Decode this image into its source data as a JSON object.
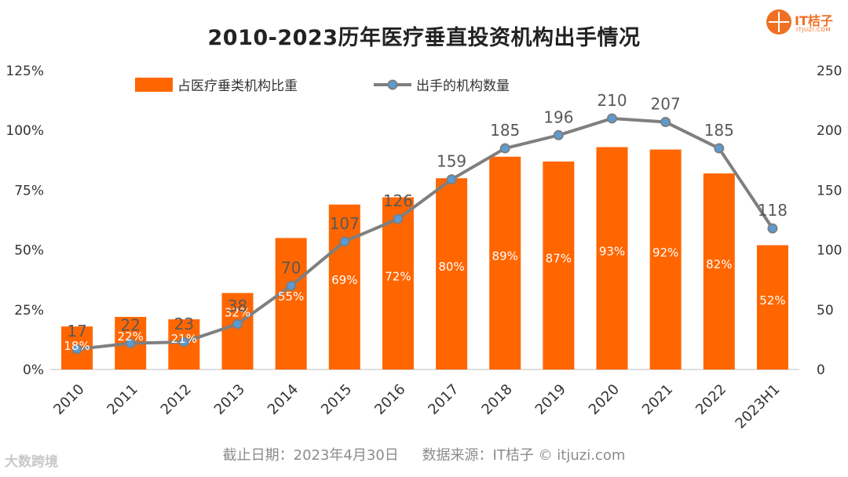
{
  "title": "2010-2023历年医疗垂直投资机构出手情况",
  "logo": {
    "brand": "IT桔子",
    "domain": "ITJUZI.COM"
  },
  "footer": {
    "date": "截止日期：2023年4月30日",
    "source": "数据来源：IT桔子 © itjuzi.com"
  },
  "watermark": "大数跨境",
  "colors": {
    "bar": "#ff6600",
    "line": "#7f7f7f",
    "marker": "#5b9bd5",
    "axis": "#333333"
  },
  "chart_data": {
    "type": "bar+line",
    "categories": [
      "2010",
      "2011",
      "2012",
      "2013",
      "2014",
      "2015",
      "2016",
      "2017",
      "2018",
      "2019",
      "2020",
      "2021",
      "2022",
      "2023H1"
    ],
    "series": [
      {
        "name": "占医疗垂类机构比重",
        "type": "bar",
        "axis": "left",
        "values": [
          18,
          22,
          21,
          32,
          55,
          69,
          72,
          80,
          89,
          87,
          93,
          92,
          82,
          52
        ],
        "labels": [
          "18%",
          "22%",
          "21%",
          "32%",
          "55%",
          "69%",
          "72%",
          "80%",
          "89%",
          "87%",
          "93%",
          "92%",
          "82%",
          "52%"
        ]
      },
      {
        "name": "出手的机构数量",
        "type": "line",
        "axis": "right",
        "values": [
          17,
          22,
          23,
          38,
          70,
          107,
          126,
          159,
          185,
          196,
          210,
          207,
          185,
          118
        ],
        "labels": [
          "17",
          "22",
          "23",
          "38",
          "70",
          "107",
          "126",
          "159",
          "185",
          "196",
          "210",
          "207",
          "185",
          "118"
        ]
      }
    ],
    "y_left": {
      "range": [
        0,
        125
      ],
      "ticks": [
        "0%",
        "25%",
        "50%",
        "75%",
        "100%",
        "125%"
      ]
    },
    "y_right": {
      "range": [
        0,
        250
      ],
      "ticks": [
        "0",
        "50",
        "100",
        "150",
        "200",
        "250"
      ]
    },
    "grid": false,
    "legend": "top"
  }
}
